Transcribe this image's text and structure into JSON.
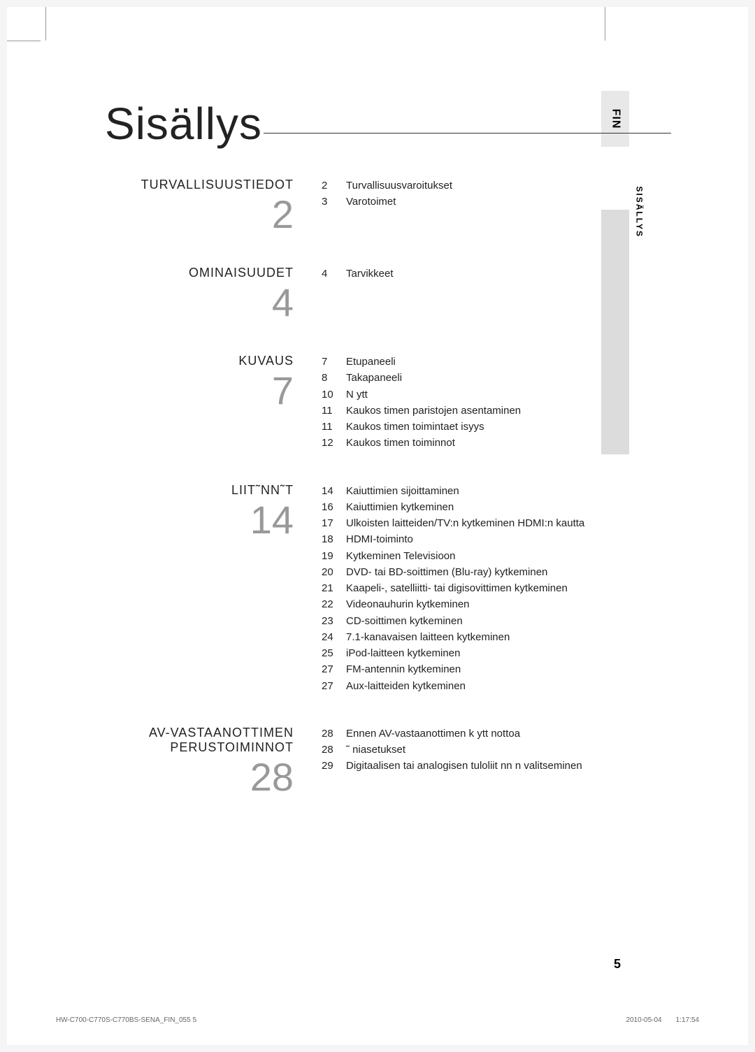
{
  "page": {
    "title": "Sisällys",
    "lang_tab": "FIN",
    "section_tab": "SISÄLLYS",
    "page_number": "5"
  },
  "sections": [
    {
      "heading": "TURVALLISUUSTIEDOT",
      "number": "2",
      "entries": [
        {
          "page": "2",
          "text": "Turvallisuusvaroitukset"
        },
        {
          "page": "3",
          "text": "Varotoimet"
        }
      ]
    },
    {
      "heading": "OMINAISUUDET",
      "number": "4",
      "entries": [
        {
          "page": "4",
          "text": "Tarvikkeet"
        }
      ]
    },
    {
      "heading": "KUVAUS",
      "number": "7",
      "entries": [
        {
          "page": "7",
          "text": "Etupaneeli"
        },
        {
          "page": "8",
          "text": "Takapaneeli"
        },
        {
          "page": "10",
          "text": "N ytt"
        },
        {
          "page": "11",
          "text": "Kaukos  timen paristojen asentaminen"
        },
        {
          "page": "11",
          "text": "Kaukos  timen toimintaet isyys"
        },
        {
          "page": "12",
          "text": "Kaukos  timen toiminnot"
        }
      ]
    },
    {
      "heading": "LIIT˜NN˜T",
      "number": "14",
      "entries": [
        {
          "page": "14",
          "text": "Kaiuttimien sijoittaminen"
        },
        {
          "page": "16",
          "text": "Kaiuttimien kytkeminen"
        },
        {
          "page": "17",
          "text": "Ulkoisten laitteiden/TV:n kytkeminen HDMI:n kautta"
        },
        {
          "page": "18",
          "text": "HDMI-toiminto"
        },
        {
          "page": "19",
          "text": "Kytkeminen Televisioon"
        },
        {
          "page": "20",
          "text": "DVD- tai BD-soittimen (Blu-ray) kytkeminen"
        },
        {
          "page": "21",
          "text": "Kaapeli-, satelliitti- tai digisovittimen kytkeminen"
        },
        {
          "page": "22",
          "text": "Videonauhurin kytkeminen"
        },
        {
          "page": "23",
          "text": "CD-soittimen kytkeminen"
        },
        {
          "page": "24",
          "text": "7.1-kanavaisen laitteen kytkeminen"
        },
        {
          "page": "25",
          "text": "iPod-laitteen kytkeminen"
        },
        {
          "page": "27",
          "text": "FM-antennin kytkeminen"
        },
        {
          "page": "27",
          "text": "Aux-laitteiden kytkeminen"
        }
      ]
    },
    {
      "heading": "AV-VASTAANOTTIMEN PERUSTOIMINNOT",
      "number": "28",
      "entries": [
        {
          "page": "28",
          "text": "Ennen AV-vastaanottimen k ytt  nottoa"
        },
        {
          "page": "28",
          "text": "˜ niasetukset"
        },
        {
          "page": "29",
          "text": "Digitaalisen tai analogisen tuloliit nn n valitseminen"
        }
      ]
    }
  ],
  "footer": {
    "filename": "HW-C700-C770S-C770BS-SENA_FIN_055  5",
    "date": "2010-05-04",
    "time": "1:17:54"
  },
  "colors": {
    "background": "#ffffff",
    "text": "#222222",
    "number_outline": "#999999",
    "tab_light": "#e8e8e8",
    "tab_dark": "#dcdcdc"
  }
}
